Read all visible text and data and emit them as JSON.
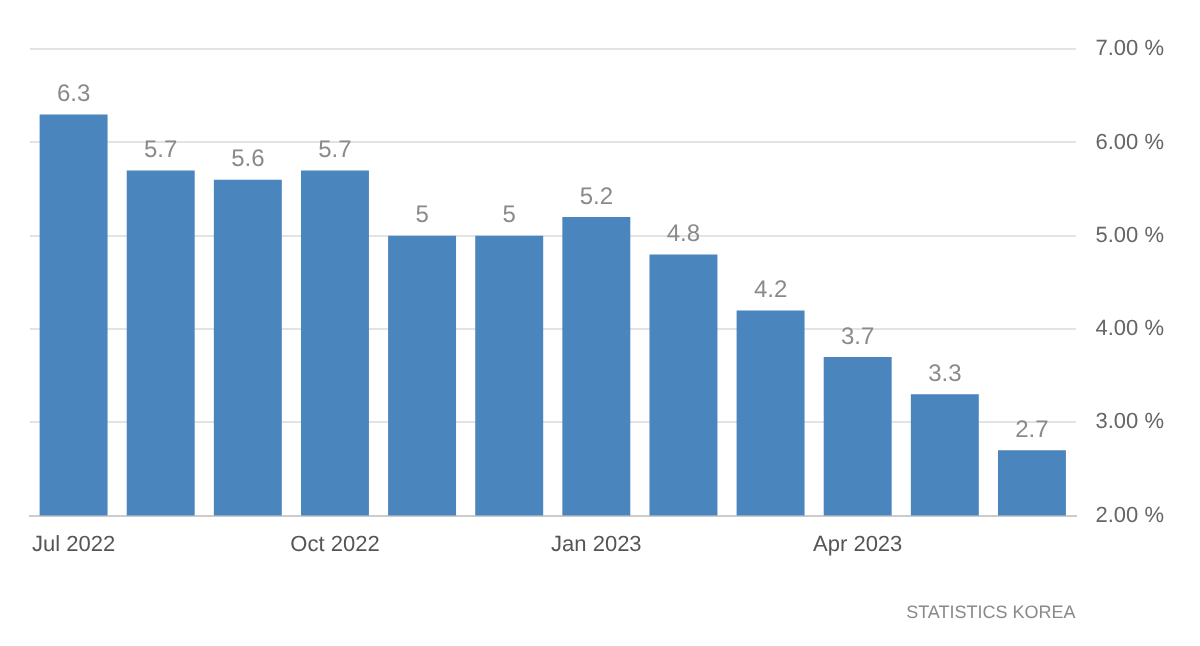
{
  "chart_data": {
    "type": "bar",
    "categories": [
      "Jul 2022",
      null,
      null,
      "Oct 2022",
      null,
      null,
      "Jan 2023",
      null,
      null,
      "Apr 2023",
      null,
      null
    ],
    "values": [
      6.3,
      5.7,
      5.6,
      5.7,
      5,
      5,
      5.2,
      4.8,
      4.2,
      3.7,
      3.3,
      2.7
    ],
    "color": "#4a85bd",
    "ylim": [
      2,
      7
    ],
    "yticks": [
      {
        "value": 2,
        "label": "2.00 %"
      },
      {
        "value": 3,
        "label": "3.00 %"
      },
      {
        "value": 4,
        "label": "4.00 %"
      },
      {
        "value": 5,
        "label": "5.00 %"
      },
      {
        "value": 6,
        "label": "6.00 %"
      },
      {
        "value": 7,
        "label": "7.00 %"
      }
    ],
    "grid": "y",
    "data_labels": true,
    "annotations": [
      "STATISTICS KOREA"
    ]
  }
}
